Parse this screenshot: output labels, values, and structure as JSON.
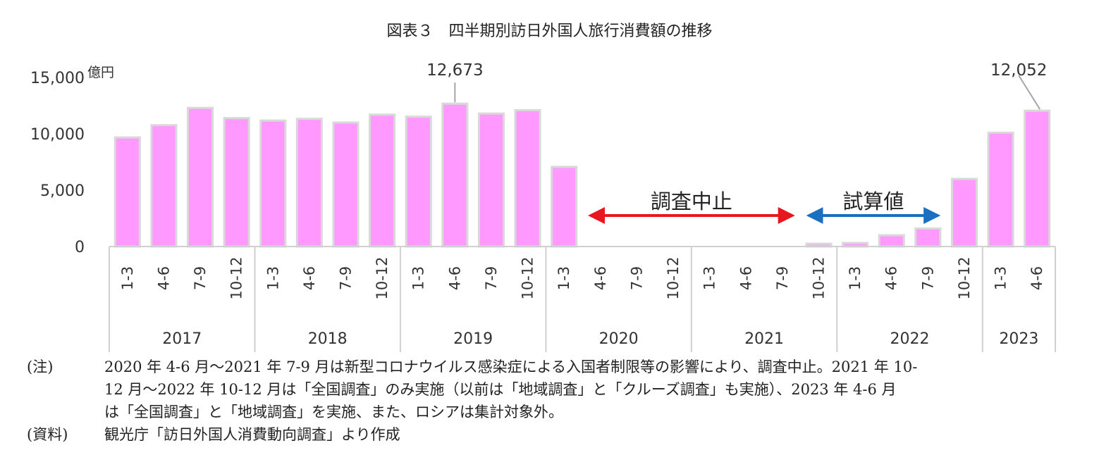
{
  "chart_data": {
    "type": "bar",
    "title": "図表３　四半期別訪日外国人旅行消費額の推移",
    "ylabel": "億円",
    "ylim": [
      0,
      15000
    ],
    "yticks": [
      "0",
      "5,000",
      "10,000",
      "15,000"
    ],
    "ytick_values": [
      0,
      5000,
      10000,
      15000
    ],
    "bar_color": "#ff99ff",
    "bar_border_color": "#d9d9d9",
    "categories": [
      "1-3",
      "4-6",
      "7-9",
      "10-12",
      "1-3",
      "4-6",
      "7-9",
      "10-12",
      "1-3",
      "4-6",
      "7-9",
      "10-12",
      "1-3",
      "4-6",
      "7-9",
      "10-12",
      "1-3",
      "4-6",
      "7-9",
      "10-12",
      "1-3",
      "4-6",
      "7-9",
      "10-12",
      "1-3",
      "4-6"
    ],
    "years": [
      {
        "label": "2017",
        "count": 4
      },
      {
        "label": "2018",
        "count": 4
      },
      {
        "label": "2019",
        "count": 4
      },
      {
        "label": "2020",
        "count": 4
      },
      {
        "label": "2021",
        "count": 4
      },
      {
        "label": "2022",
        "count": 4
      },
      {
        "label": "2023",
        "count": 2
      }
    ],
    "values": [
      9680,
      10770,
      12300,
      11400,
      11180,
      11330,
      11000,
      11700,
      11520,
      12673,
      11800,
      12100,
      7070,
      null,
      null,
      null,
      null,
      null,
      null,
      250,
      320,
      1000,
      1600,
      6000,
      10100,
      12052
    ],
    "data_labels": [
      {
        "index": 9,
        "text": "12,673"
      },
      {
        "index": 25,
        "text": "12,052"
      }
    ],
    "annotations": [
      {
        "text": "調査中止",
        "from": 13,
        "to": 18,
        "color": "#e8161f"
      },
      {
        "text": "試算値",
        "from": 19,
        "to": 22,
        "color": "#1a6fc0"
      }
    ]
  },
  "notes": [
    {
      "label": "(注)",
      "lines": [
        "2020 年 4-6 月～2021 年 7-9 月は新型コロナウイルス感染症による入国者制限等の影響により、調査中止。2021 年 10-",
        "12 月～2022 年 10-12 月は「全国調査」のみ実施（以前は「地域調査」と「クルーズ調査」も実施）、2023 年 4-6 月",
        "は「全国調査」と「地域調査」を実施、また、ロシアは集計対象外。"
      ]
    },
    {
      "label": "(資料)",
      "lines": [
        "観光庁「訪日外国人消費動向調査」より作成"
      ]
    }
  ]
}
